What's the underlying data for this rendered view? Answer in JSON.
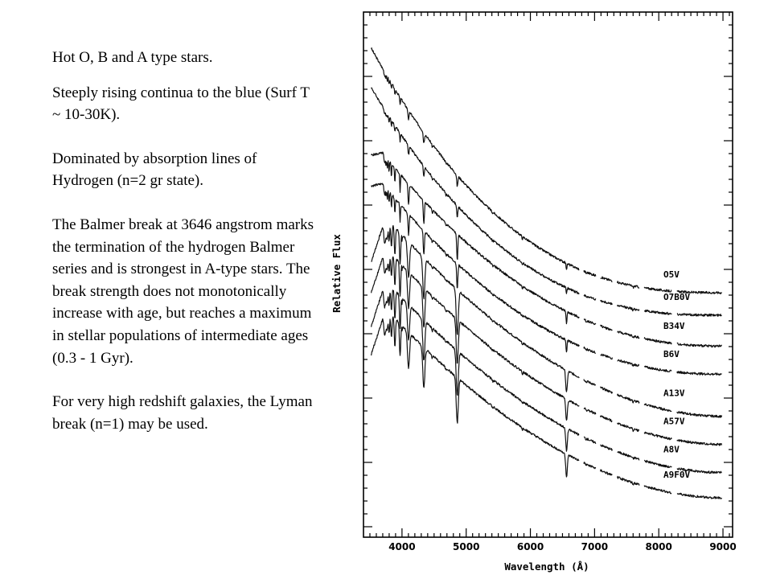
{
  "text": {
    "p1": "Hot O, B and A type stars.",
    "p2": "Steeply rising continua to the blue (Surf T ~ 10-30K).",
    "p3": "Dominated by absorption lines of Hydrogen (n=2 gr state).",
    "p4": "The Balmer break at 3646 angstrom marks the termination of the hydrogen Balmer series and is strongest in A-type stars. The break strength does not monotonically increase with age, but reaches a maximum in stellar populations of intermediate ages (0.3 - 1 Gyr).",
    "p5": "For very high redshift galaxies, the Lyman break (n=1) may be used."
  },
  "chart_data": {
    "type": "line",
    "title": "",
    "xlabel": "Wavelength (Å)",
    "ylabel": "Relative Flux",
    "xlim": [
      3400,
      9150
    ],
    "xticks": [
      4000,
      5000,
      6000,
      7000,
      8000,
      9000
    ],
    "grid": false,
    "series": [
      {
        "name": "O5V",
        "type": "O",
        "start": 0.96,
        "end": 0.09
      },
      {
        "name": "O7B0V",
        "type": "O",
        "start": 0.82,
        "end": 0.01
      },
      {
        "name": "B34V",
        "type": "B",
        "start": 0.64,
        "end": -0.1
      },
      {
        "name": "B6V",
        "type": "B",
        "start": 0.53,
        "end": -0.2
      },
      {
        "name": "A13V",
        "type": "A",
        "start": 0.42,
        "end": -0.35
      },
      {
        "name": "A57V",
        "type": "A",
        "start": 0.31,
        "end": -0.45
      },
      {
        "name": "A8V",
        "type": "A",
        "start": 0.19,
        "end": -0.55
      },
      {
        "name": "A9F0V",
        "type": "A",
        "start": 0.09,
        "end": -0.64
      }
    ]
  }
}
